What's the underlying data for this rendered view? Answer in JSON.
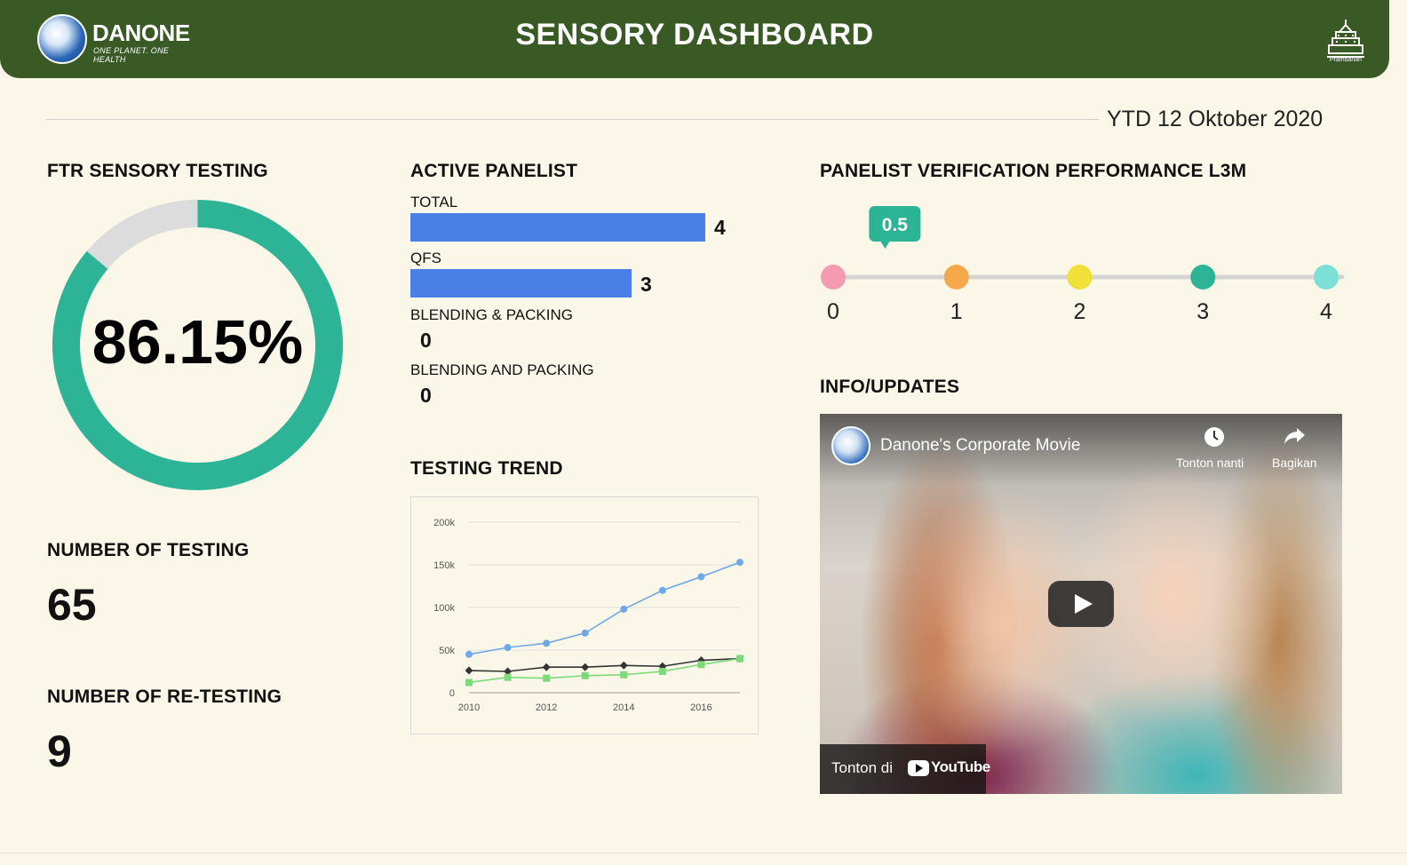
{
  "header": {
    "brand": "DANONE",
    "tagline": "ONE PLANET. ONE HEALTH",
    "title": "SENSORY DASHBOARD",
    "site_label": "Prambanan"
  },
  "period": "YTD 12 Oktober 2020",
  "ftr": {
    "title": "FTR SENSORY TESTING",
    "value_text": "86.15%",
    "value": 86.15,
    "colors": {
      "fill": "#2db496",
      "track": "#dcdcdc"
    }
  },
  "number_of_testing": {
    "title": "NUMBER OF TESTING",
    "value": "65"
  },
  "number_of_retesting": {
    "title": "NUMBER OF RE-TESTING",
    "value": "9"
  },
  "active_panelist": {
    "title": "ACTIVE PANELIST",
    "items": [
      {
        "label": "TOTAL",
        "value": 4
      },
      {
        "label": "QFS",
        "value": 3
      },
      {
        "label": "BLENDING & PACKING",
        "value": 0
      },
      {
        "label": "BLENDING AND PACKING",
        "value": 0
      }
    ],
    "bar_color": "#4a80e6"
  },
  "testing_trend": {
    "title": "TESTING TREND",
    "chart_data": {
      "type": "line",
      "x": [
        2010,
        2011,
        2012,
        2013,
        2014,
        2015,
        2016,
        2017
      ],
      "series": [
        {
          "values": [
            45000,
            53000,
            58000,
            70000,
            98000,
            120000,
            136000,
            153000
          ],
          "color": "#6fa8e6",
          "marker": "circle"
        },
        {
          "values": [
            26000,
            25000,
            30000,
            30000,
            32000,
            31000,
            38000,
            40000
          ],
          "color": "#333333",
          "marker": "diamond"
        },
        {
          "values": [
            12000,
            18000,
            17000,
            20000,
            21000,
            25000,
            33000,
            40000
          ],
          "color": "#7ed97a",
          "marker": "square"
        }
      ],
      "ylim": [
        0,
        200000
      ],
      "xlim": [
        2010,
        2017
      ],
      "y_ticks": [
        0,
        50000,
        100000,
        150000,
        200000
      ],
      "y_tick_labels": [
        "0",
        "50k",
        "100k",
        "150k",
        "200k"
      ],
      "x_ticks": [
        2010,
        2012,
        2014,
        2016
      ],
      "x_tick_labels": [
        "2010",
        "2012",
        "2014",
        "2016"
      ],
      "grid": true
    }
  },
  "verification": {
    "title": "PANELIST VERIFICATION PERFORMANCE L3M",
    "value": 0.5,
    "value_label": "0.5",
    "scale": [
      "0",
      "1",
      "2",
      "3",
      "4"
    ],
    "dot_colors": [
      "#f59ab1",
      "#f5a94b",
      "#f2e03a",
      "#2db496",
      "#7de0d7"
    ],
    "tooltip_color": "#2db496"
  },
  "info": {
    "title": "INFO/UPDATES",
    "video": {
      "title": "Danone's Corporate Movie",
      "watch_later": "Tonton nanti",
      "share": "Bagikan",
      "watch_on": "Tonton di",
      "platform": "YouTube"
    }
  }
}
